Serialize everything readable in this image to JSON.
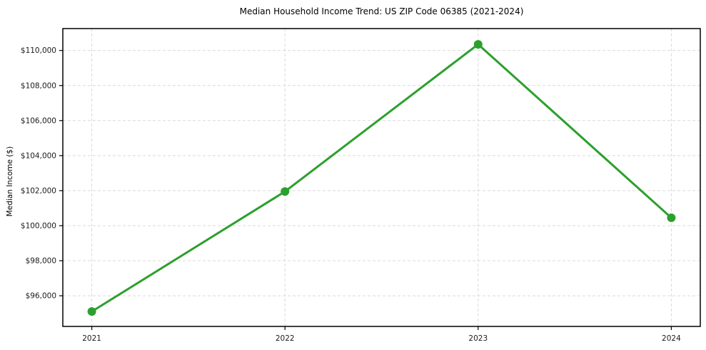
{
  "title": "Median Household Income Trend: US ZIP Code 06385 (2021-2024)",
  "chart_data": {
    "type": "line",
    "title": "Median Household Income Trend: US ZIP Code 06385 (2021-2024)",
    "xlabel": "",
    "ylabel": "Median Income ($)",
    "x": [
      2021,
      2022,
      2023,
      2024
    ],
    "x_tick_labels": [
      "2021",
      "2022",
      "2023",
      "2024"
    ],
    "series": [
      {
        "name": "Median Household Income",
        "values": [
          95100,
          101950,
          110350,
          100450
        ],
        "color": "#2ca02c",
        "marker": "circle",
        "line_width": 3,
        "marker_radius": 6
      }
    ],
    "xlim": [
      2020.85,
      2024.15
    ],
    "ylim": [
      94250,
      111250
    ],
    "yticks": [
      96000,
      98000,
      100000,
      102000,
      104000,
      106000,
      108000,
      110000
    ],
    "ytick_labels": [
      "$96,000",
      "$98,000",
      "$100,000",
      "$102,000",
      "$104,000",
      "$106,000",
      "$108,000",
      "$110,000"
    ],
    "grid": true,
    "grid_style": "dashed",
    "grid_color": "#d9d9d9",
    "spine_color": "#000000",
    "legend": "none",
    "background": "#ffffff"
  }
}
